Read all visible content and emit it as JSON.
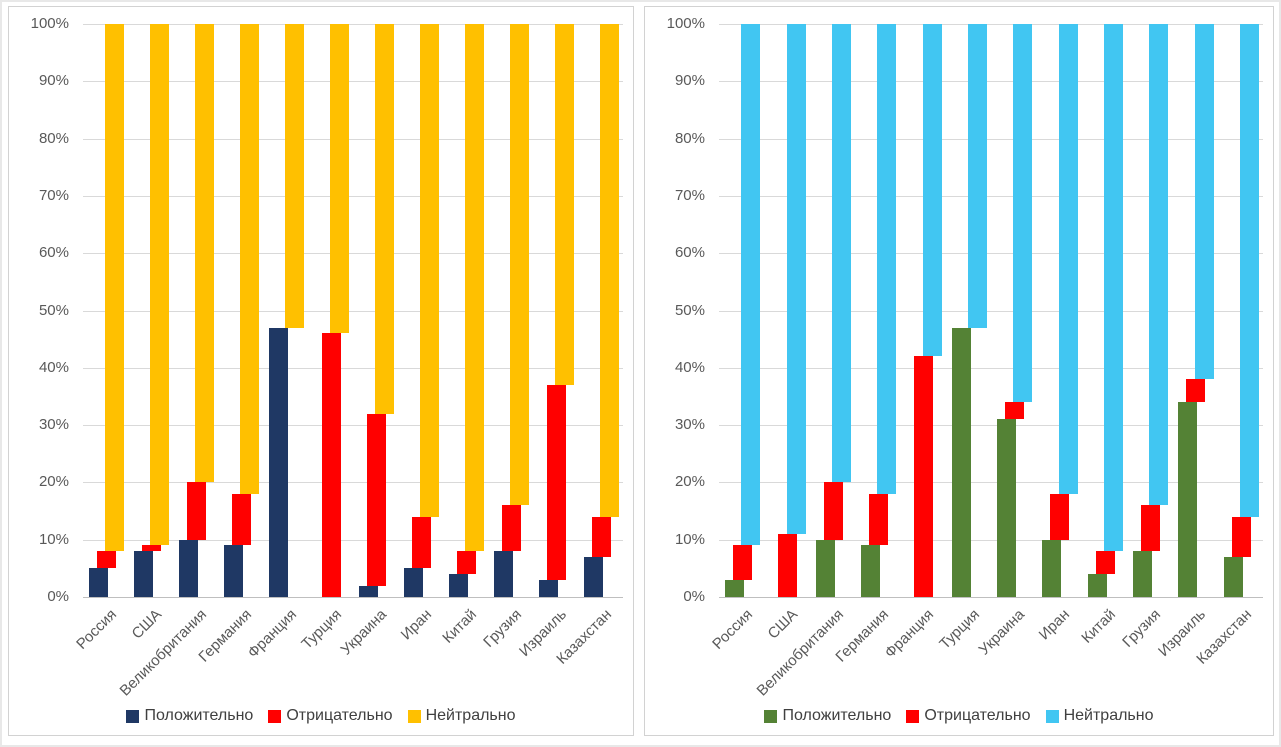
{
  "chart_data": [
    {
      "type": "bar",
      "subtype": "stacked-100",
      "title": "",
      "xlabel": "",
      "ylabel": "",
      "ylim": [
        0,
        100
      ],
      "grid": true,
      "legend_position": "bottom",
      "y_ticks": [
        "100%",
        "90%",
        "80%",
        "70%",
        "60%",
        "50%",
        "40%",
        "30%",
        "20%",
        "10%",
        "0%"
      ],
      "categories": [
        "Россия",
        "США",
        "Великобритания",
        "Германия",
        "Франция",
        "Турция",
        "Украина",
        "Иран",
        "Китай",
        "Грузия",
        "Израиль",
        "Казахстан"
      ],
      "series": [
        {
          "name": "Положительно",
          "color": "#1F3864",
          "values": [
            5,
            8,
            10,
            9,
            47,
            0,
            2,
            5,
            4,
            8,
            3,
            7
          ]
        },
        {
          "name": "Отрицательно",
          "color": "#FF0000",
          "values": [
            3,
            1,
            10,
            9,
            0,
            46,
            30,
            9,
            4,
            8,
            34,
            7
          ]
        },
        {
          "name": "Нейтрально",
          "color": "#FFC000",
          "values": [
            92,
            91,
            80,
            82,
            53,
            54,
            68,
            86,
            92,
            84,
            63,
            86
          ]
        }
      ]
    },
    {
      "type": "bar",
      "subtype": "stacked-100",
      "title": "",
      "xlabel": "",
      "ylabel": "",
      "ylim": [
        0,
        100
      ],
      "grid": true,
      "legend_position": "bottom",
      "y_ticks": [
        "100%",
        "90%",
        "80%",
        "70%",
        "60%",
        "50%",
        "40%",
        "30%",
        "20%",
        "10%",
        "0%"
      ],
      "categories": [
        "Россия",
        "США",
        "Великобритания",
        "Германия",
        "Франция",
        "Турция",
        "Украина",
        "Иран",
        "Китай",
        "Грузия",
        "Израиль",
        "Казахстан"
      ],
      "series": [
        {
          "name": "Положительно",
          "color": "#548235",
          "values": [
            3,
            0,
            10,
            9,
            0,
            47,
            31,
            10,
            4,
            8,
            34,
            7
          ]
        },
        {
          "name": "Отрицательно",
          "color": "#FF0000",
          "values": [
            6,
            11,
            10,
            9,
            42,
            0,
            3,
            8,
            4,
            8,
            4,
            7
          ]
        },
        {
          "name": "Нейтрально",
          "color": "#41C6F2",
          "values": [
            91,
            89,
            80,
            82,
            58,
            53,
            66,
            82,
            92,
            84,
            62,
            86
          ]
        }
      ]
    }
  ]
}
